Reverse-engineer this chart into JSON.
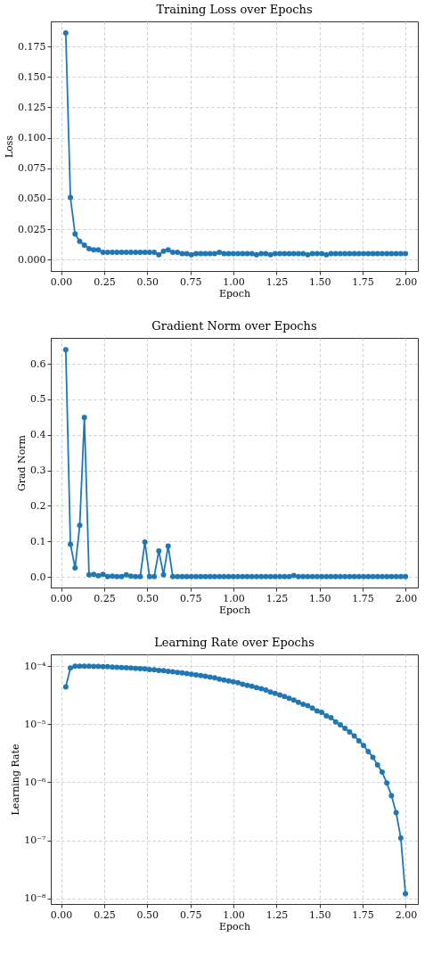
{
  "chart_data": [
    {
      "type": "line",
      "title": "Training Loss over Epochs",
      "xlabel": "Epoch",
      "ylabel": "Loss",
      "marker": "circle",
      "line_style": "solid",
      "grid": true,
      "x": [
        0.027,
        0.054,
        0.081,
        0.108,
        0.135,
        0.162,
        0.189,
        0.216,
        0.243,
        0.27,
        0.297,
        0.324,
        0.351,
        0.378,
        0.405,
        0.432,
        0.459,
        0.486,
        0.513,
        0.54,
        0.567,
        0.594,
        0.621,
        0.648,
        0.675,
        0.702,
        0.729,
        0.756,
        0.783,
        0.81,
        0.837,
        0.864,
        0.891,
        0.918,
        0.945,
        0.972,
        0.999,
        1.026,
        1.053,
        1.08,
        1.107,
        1.134,
        1.161,
        1.188,
        1.215,
        1.242,
        1.269,
        1.296,
        1.323,
        1.35,
        1.377,
        1.404,
        1.431,
        1.458,
        1.485,
        1.512,
        1.539,
        1.566,
        1.593,
        1.62,
        1.647,
        1.674,
        1.701,
        1.728,
        1.755,
        1.782,
        1.809,
        1.836,
        1.863,
        1.89,
        1.917,
        1.944,
        1.971,
        1.998
      ],
      "series": [
        {
          "color": "#1f77b4",
          "values": [
            0.186,
            0.051,
            0.021,
            0.015,
            0.012,
            0.009,
            0.008,
            0.008,
            0.006,
            0.006,
            0.006,
            0.006,
            0.006,
            0.006,
            0.006,
            0.006,
            0.006,
            0.006,
            0.006,
            0.006,
            0.004,
            0.007,
            0.008,
            0.006,
            0.006,
            0.005,
            0.005,
            0.004,
            0.005,
            0.005,
            0.005,
            0.005,
            0.005,
            0.006,
            0.005,
            0.005,
            0.005,
            0.005,
            0.005,
            0.005,
            0.005,
            0.004,
            0.005,
            0.005,
            0.004,
            0.005,
            0.005,
            0.005,
            0.005,
            0.005,
            0.005,
            0.005,
            0.004,
            0.005,
            0.005,
            0.005,
            0.004,
            0.005,
            0.005,
            0.005,
            0.005,
            0.005,
            0.005,
            0.005,
            0.005,
            0.005,
            0.005,
            0.005,
            0.005,
            0.005,
            0.005,
            0.005,
            0.005,
            0.005
          ]
        }
      ],
      "xlim": [
        -0.06,
        2.07
      ],
      "ylim": [
        -0.0093,
        0.1955
      ],
      "xticks": [
        {
          "value": 0,
          "label": "0.00"
        },
        {
          "value": 0.25,
          "label": "0.25"
        },
        {
          "value": 0.5,
          "label": "0.50"
        },
        {
          "value": 0.75,
          "label": "0.75"
        },
        {
          "value": 1,
          "label": "1.00"
        },
        {
          "value": 1.25,
          "label": "1.25"
        },
        {
          "value": 1.5,
          "label": "1.50"
        },
        {
          "value": 1.75,
          "label": "1.75"
        },
        {
          "value": 2,
          "label": "2.00"
        }
      ],
      "yticks": [
        {
          "value": 0,
          "label": "0.000"
        },
        {
          "value": 0.025,
          "label": "0.025"
        },
        {
          "value": 0.05,
          "label": "0.050"
        },
        {
          "value": 0.075,
          "label": "0.075"
        },
        {
          "value": 0.1,
          "label": "0.100"
        },
        {
          "value": 0.125,
          "label": "0.125"
        },
        {
          "value": 0.15,
          "label": "0.150"
        },
        {
          "value": 0.175,
          "label": "0.175"
        }
      ]
    },
    {
      "type": "line",
      "title": "Gradient Norm over Epochs",
      "xlabel": "Epoch",
      "ylabel": "Grad Norm",
      "marker": "circle",
      "line_style": "solid",
      "grid": true,
      "x": [
        0.027,
        0.054,
        0.081,
        0.108,
        0.135,
        0.162,
        0.189,
        0.216,
        0.243,
        0.27,
        0.297,
        0.324,
        0.351,
        0.378,
        0.405,
        0.432,
        0.459,
        0.486,
        0.513,
        0.54,
        0.567,
        0.594,
        0.621,
        0.648,
        0.675,
        0.702,
        0.729,
        0.756,
        0.783,
        0.81,
        0.837,
        0.864,
        0.891,
        0.918,
        0.945,
        0.972,
        0.999,
        1.026,
        1.053,
        1.08,
        1.107,
        1.134,
        1.161,
        1.188,
        1.215,
        1.242,
        1.269,
        1.296,
        1.323,
        1.35,
        1.377,
        1.404,
        1.431,
        1.458,
        1.485,
        1.512,
        1.539,
        1.566,
        1.593,
        1.62,
        1.647,
        1.674,
        1.701,
        1.728,
        1.755,
        1.782,
        1.809,
        1.836,
        1.863,
        1.89,
        1.917,
        1.944,
        1.971,
        1.998
      ],
      "series": [
        {
          "color": "#1f77b4",
          "values": [
            0.64,
            0.092,
            0.025,
            0.145,
            0.449,
            0.006,
            0.007,
            0.003,
            0.007,
            0.001,
            0.002,
            0.001,
            0.001,
            0.006,
            0.002,
            0.001,
            0.001,
            0.098,
            0.001,
            0.001,
            0.073,
            0.006,
            0.087,
            0.001,
            0.001,
            0.001,
            0.001,
            0.001,
            0.001,
            0.001,
            0.001,
            0.001,
            0.001,
            0.001,
            0.001,
            0.001,
            0.001,
            0.001,
            0.001,
            0.001,
            0.001,
            0.001,
            0.001,
            0.001,
            0.001,
            0.001,
            0.001,
            0.001,
            0.001,
            0.004,
            0.001,
            0.001,
            0.001,
            0.001,
            0.001,
            0.001,
            0.001,
            0.001,
            0.001,
            0.001,
            0.001,
            0.001,
            0.001,
            0.001,
            0.001,
            0.001,
            0.001,
            0.001,
            0.001,
            0.001,
            0.001,
            0.001,
            0.001,
            0.001
          ]
        }
      ],
      "xlim": [
        -0.06,
        2.07
      ],
      "ylim": [
        -0.03,
        0.673
      ],
      "xticks": [
        {
          "value": 0,
          "label": "0.00"
        },
        {
          "value": 0.25,
          "label": "0.25"
        },
        {
          "value": 0.5,
          "label": "0.50"
        },
        {
          "value": 0.75,
          "label": "0.75"
        },
        {
          "value": 1,
          "label": "1.00"
        },
        {
          "value": 1.25,
          "label": "1.25"
        },
        {
          "value": 1.5,
          "label": "1.50"
        },
        {
          "value": 1.75,
          "label": "1.75"
        },
        {
          "value": 2,
          "label": "2.00"
        }
      ],
      "yticks": [
        {
          "value": 0,
          "label": "0.0"
        },
        0.1,
        0.2,
        0.3,
        0.4,
        0.5,
        0.6
      ]
    },
    {
      "type": "line",
      "title": "Learning Rate over Epochs",
      "xlabel": "Epoch",
      "ylabel": "Learning Rate",
      "marker": "circle",
      "line_style": "solid",
      "grid": true,
      "log": "y",
      "x": [
        0.027,
        0.054,
        0.081,
        0.108,
        0.135,
        0.162,
        0.189,
        0.216,
        0.243,
        0.27,
        0.297,
        0.324,
        0.351,
        0.378,
        0.405,
        0.432,
        0.459,
        0.486,
        0.513,
        0.54,
        0.567,
        0.594,
        0.621,
        0.648,
        0.675,
        0.702,
        0.729,
        0.756,
        0.783,
        0.81,
        0.837,
        0.864,
        0.891,
        0.918,
        0.945,
        0.972,
        0.999,
        1.026,
        1.053,
        1.08,
        1.107,
        1.134,
        1.161,
        1.188,
        1.215,
        1.242,
        1.269,
        1.296,
        1.323,
        1.35,
        1.377,
        1.404,
        1.431,
        1.458,
        1.485,
        1.512,
        1.539,
        1.566,
        1.593,
        1.62,
        1.647,
        1.674,
        1.701,
        1.728,
        1.755,
        1.782,
        1.809,
        1.836,
        1.863,
        1.89,
        1.917,
        1.944,
        1.971,
        1.998
      ],
      "series": [
        {
          "color": "#1f77b4",
          "values": [
            4.4e-05,
            9.3e-05,
            0.0001,
            0.0001,
            0.0001,
            0.0001,
            9.9e-05,
            9.9e-05,
            9.8e-05,
            9.8e-05,
            9.7e-05,
            9.6e-05,
            9.5e-05,
            9.4e-05,
            9.3e-05,
            9.2e-05,
            9.1e-05,
            9e-05,
            8.8e-05,
            8.7e-05,
            8.5e-05,
            8.4e-05,
            8.2e-05,
            8e-05,
            7.8e-05,
            7.7e-05,
            7.5e-05,
            7.3e-05,
            7.1e-05,
            6.9e-05,
            6.7e-05,
            6.5e-05,
            6.3e-05,
            6e-05,
            5.8e-05,
            5.6e-05,
            5.4e-05,
            5.2e-05,
            4.9e-05,
            4.7e-05,
            4.5e-05,
            4.3e-05,
            4.1e-05,
            3.9e-05,
            3.6e-05,
            3.4e-05,
            3.2e-05,
            3e-05,
            2.8e-05,
            2.6e-05,
            2.4e-05,
            2.2e-05,
            2.1e-05,
            1.9e-05,
            1.7e-05,
            1.6e-05,
            1.4e-05,
            1.3e-05,
            1.1e-05,
            9.8e-06,
            8.5e-06,
            7.4e-06,
            6.3e-06,
            5.2e-06,
            4.3e-06,
            3.4e-06,
            2.7e-06,
            2e-06,
            1.5e-06,
            9.7e-07,
            5.9e-07,
            3e-07,
            1.1e-07,
            1.2e-08
          ]
        }
      ],
      "xlim": [
        -0.06,
        2.07
      ],
      "ylim": [
        8e-09,
        0.00016
      ],
      "xticks": [
        {
          "value": 0,
          "label": "0.00"
        },
        {
          "value": 0.25,
          "label": "0.25"
        },
        {
          "value": 0.5,
          "label": "0.50"
        },
        {
          "value": 0.75,
          "label": "0.75"
        },
        {
          "value": 1,
          "label": "1.00"
        },
        {
          "value": 1.25,
          "label": "1.25"
        },
        {
          "value": 1.5,
          "label": "1.50"
        },
        {
          "value": 1.75,
          "label": "1.75"
        },
        {
          "value": 2,
          "label": "2.00"
        }
      ],
      "yticks": [
        {
          "value": 1e-08,
          "label": "10⁻⁸"
        },
        {
          "value": 1e-07,
          "label": "10⁻⁷"
        },
        {
          "value": 1e-06,
          "label": "10⁻⁶"
        },
        {
          "value": 1e-05,
          "label": "10⁻⁵"
        },
        {
          "value": 0.0001,
          "label": "10⁻⁴"
        }
      ]
    }
  ]
}
